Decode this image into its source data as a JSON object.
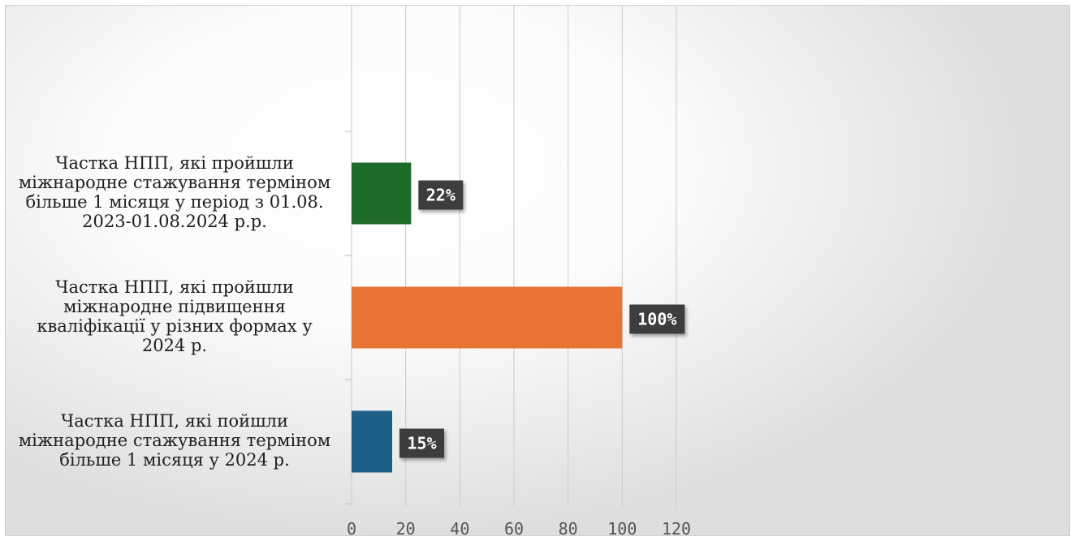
{
  "chart_data": {
    "type": "bar",
    "orientation": "horizontal",
    "categories": [
      "Частка НПП, які пройшли міжнародне стажування терміном більше  1 місяця у період з 01.08. 2023-01.08.2024 р.р.",
      "Частка НПП, які пройшли міжнародне підвищення кваліфікації у різних формах у 2024 р.",
      "Частка НПП, які пойшли міжнародне стажування терміном більше 1 місяця у 2024 р."
    ],
    "category_lines": [
      [
        "Частка НПП, які пройшли",
        "міжнародне стажування терміном",
        "більше  1 місяця у період з 01.08.",
        "2023-01.08.2024 р.р."
      ],
      [
        "Частка НПП, які пройшли",
        "міжнародне підвищення",
        "кваліфікації у різних формах у",
        "2024 р."
      ],
      [
        "Частка НПП, які пойшли",
        "міжнародне стажування терміном",
        "більше 1 місяця у 2024 р."
      ]
    ],
    "values": [
      22,
      100,
      15
    ],
    "data_labels": [
      "22%",
      "100%",
      "15%"
    ],
    "colors": [
      "#1e6b2b",
      "#e87433",
      "#1c5f87"
    ],
    "xlim": [
      0,
      120
    ],
    "xticks": [
      "0",
      "20",
      "40",
      "60",
      "80",
      "100",
      "120"
    ],
    "grid": true,
    "title": "",
    "xlabel": "",
    "ylabel": ""
  }
}
